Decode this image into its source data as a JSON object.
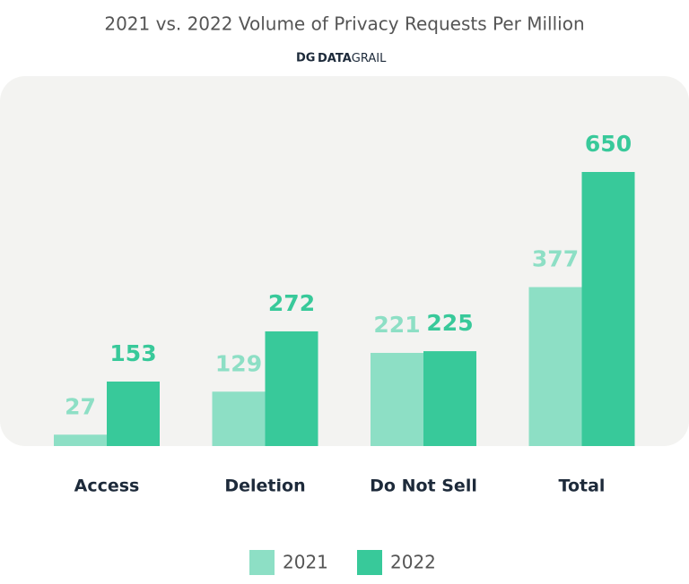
{
  "chart_data": {
    "type": "bar",
    "title": "2021 vs. 2022 Volume of Privacy Requests Per Million",
    "logo": {
      "mark": "DG",
      "bold": "DATA",
      "rest": "GRAIL"
    },
    "categories": [
      "Access",
      "Deletion",
      "Do Not Sell",
      "Total"
    ],
    "series": [
      {
        "name": "2021",
        "color": "#8ddfc5",
        "values": [
          27,
          129,
          221,
          377
        ]
      },
      {
        "name": "2022",
        "color": "#38c99a",
        "values": [
          153,
          272,
          225,
          650
        ]
      }
    ],
    "legend": "bottom"
  }
}
